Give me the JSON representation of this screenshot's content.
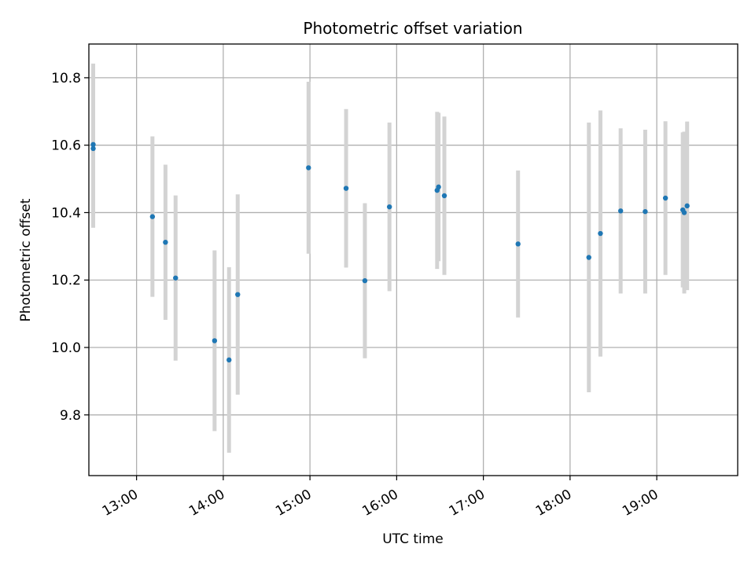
{
  "chart_data": {
    "type": "scatter",
    "title": "Photometric offset variation",
    "xlabel": "UTC time",
    "ylabel": "Photometric offset",
    "x_tick_labels": [
      "13:00",
      "14:00",
      "15:00",
      "16:00",
      "17:00",
      "18:00",
      "19:00"
    ],
    "y_tick_labels": [
      "9.8",
      "10.0",
      "10.2",
      "10.4",
      "10.6",
      "10.8"
    ],
    "y_ticks": [
      9.8,
      10.0,
      10.2,
      10.4,
      10.6,
      10.8
    ],
    "xlim": [
      "12:27",
      "19:56"
    ],
    "ylim": [
      9.62,
      10.9
    ],
    "grid": true,
    "colors": {
      "points": "#1f77b4",
      "error_bars": "#d3d3d3",
      "grid": "#b0b0b0"
    },
    "points": [
      {
        "x": "12:30",
        "y": 10.59,
        "err": 0.235
      },
      {
        "x": "12:30",
        "y": 10.602,
        "err": 0.24
      },
      {
        "x": "13:11",
        "y": 10.388,
        "err": 0.238
      },
      {
        "x": "13:20",
        "y": 10.312,
        "err": 0.23
      },
      {
        "x": "13:27",
        "y": 10.206,
        "err": 0.245
      },
      {
        "x": "13:54",
        "y": 10.02,
        "err": 0.268
      },
      {
        "x": "14:04",
        "y": 9.963,
        "err": 0.275
      },
      {
        "x": "14:10",
        "y": 10.157,
        "err": 0.297
      },
      {
        "x": "14:59",
        "y": 10.533,
        "err": 0.255
      },
      {
        "x": "15:25",
        "y": 10.472,
        "err": 0.235
      },
      {
        "x": "15:38",
        "y": 10.198,
        "err": 0.23
      },
      {
        "x": "15:55",
        "y": 10.417,
        "err": 0.25
      },
      {
        "x": "16:28",
        "y": 10.466,
        "err": 0.233
      },
      {
        "x": "16:29",
        "y": 10.476,
        "err": 0.22
      },
      {
        "x": "16:33",
        "y": 10.45,
        "err": 0.235
      },
      {
        "x": "17:24",
        "y": 10.307,
        "err": 0.218
      },
      {
        "x": "18:13",
        "y": 10.267,
        "err": 0.4
      },
      {
        "x": "18:21",
        "y": 10.338,
        "err": 0.365
      },
      {
        "x": "18:35",
        "y": 10.405,
        "err": 0.245
      },
      {
        "x": "18:52",
        "y": 10.403,
        "err": 0.243
      },
      {
        "x": "19:06",
        "y": 10.443,
        "err": 0.228
      },
      {
        "x": "19:18",
        "y": 10.408,
        "err": 0.23
      },
      {
        "x": "19:19",
        "y": 10.4,
        "err": 0.24
      },
      {
        "x": "19:21",
        "y": 10.42,
        "err": 0.25
      }
    ]
  }
}
